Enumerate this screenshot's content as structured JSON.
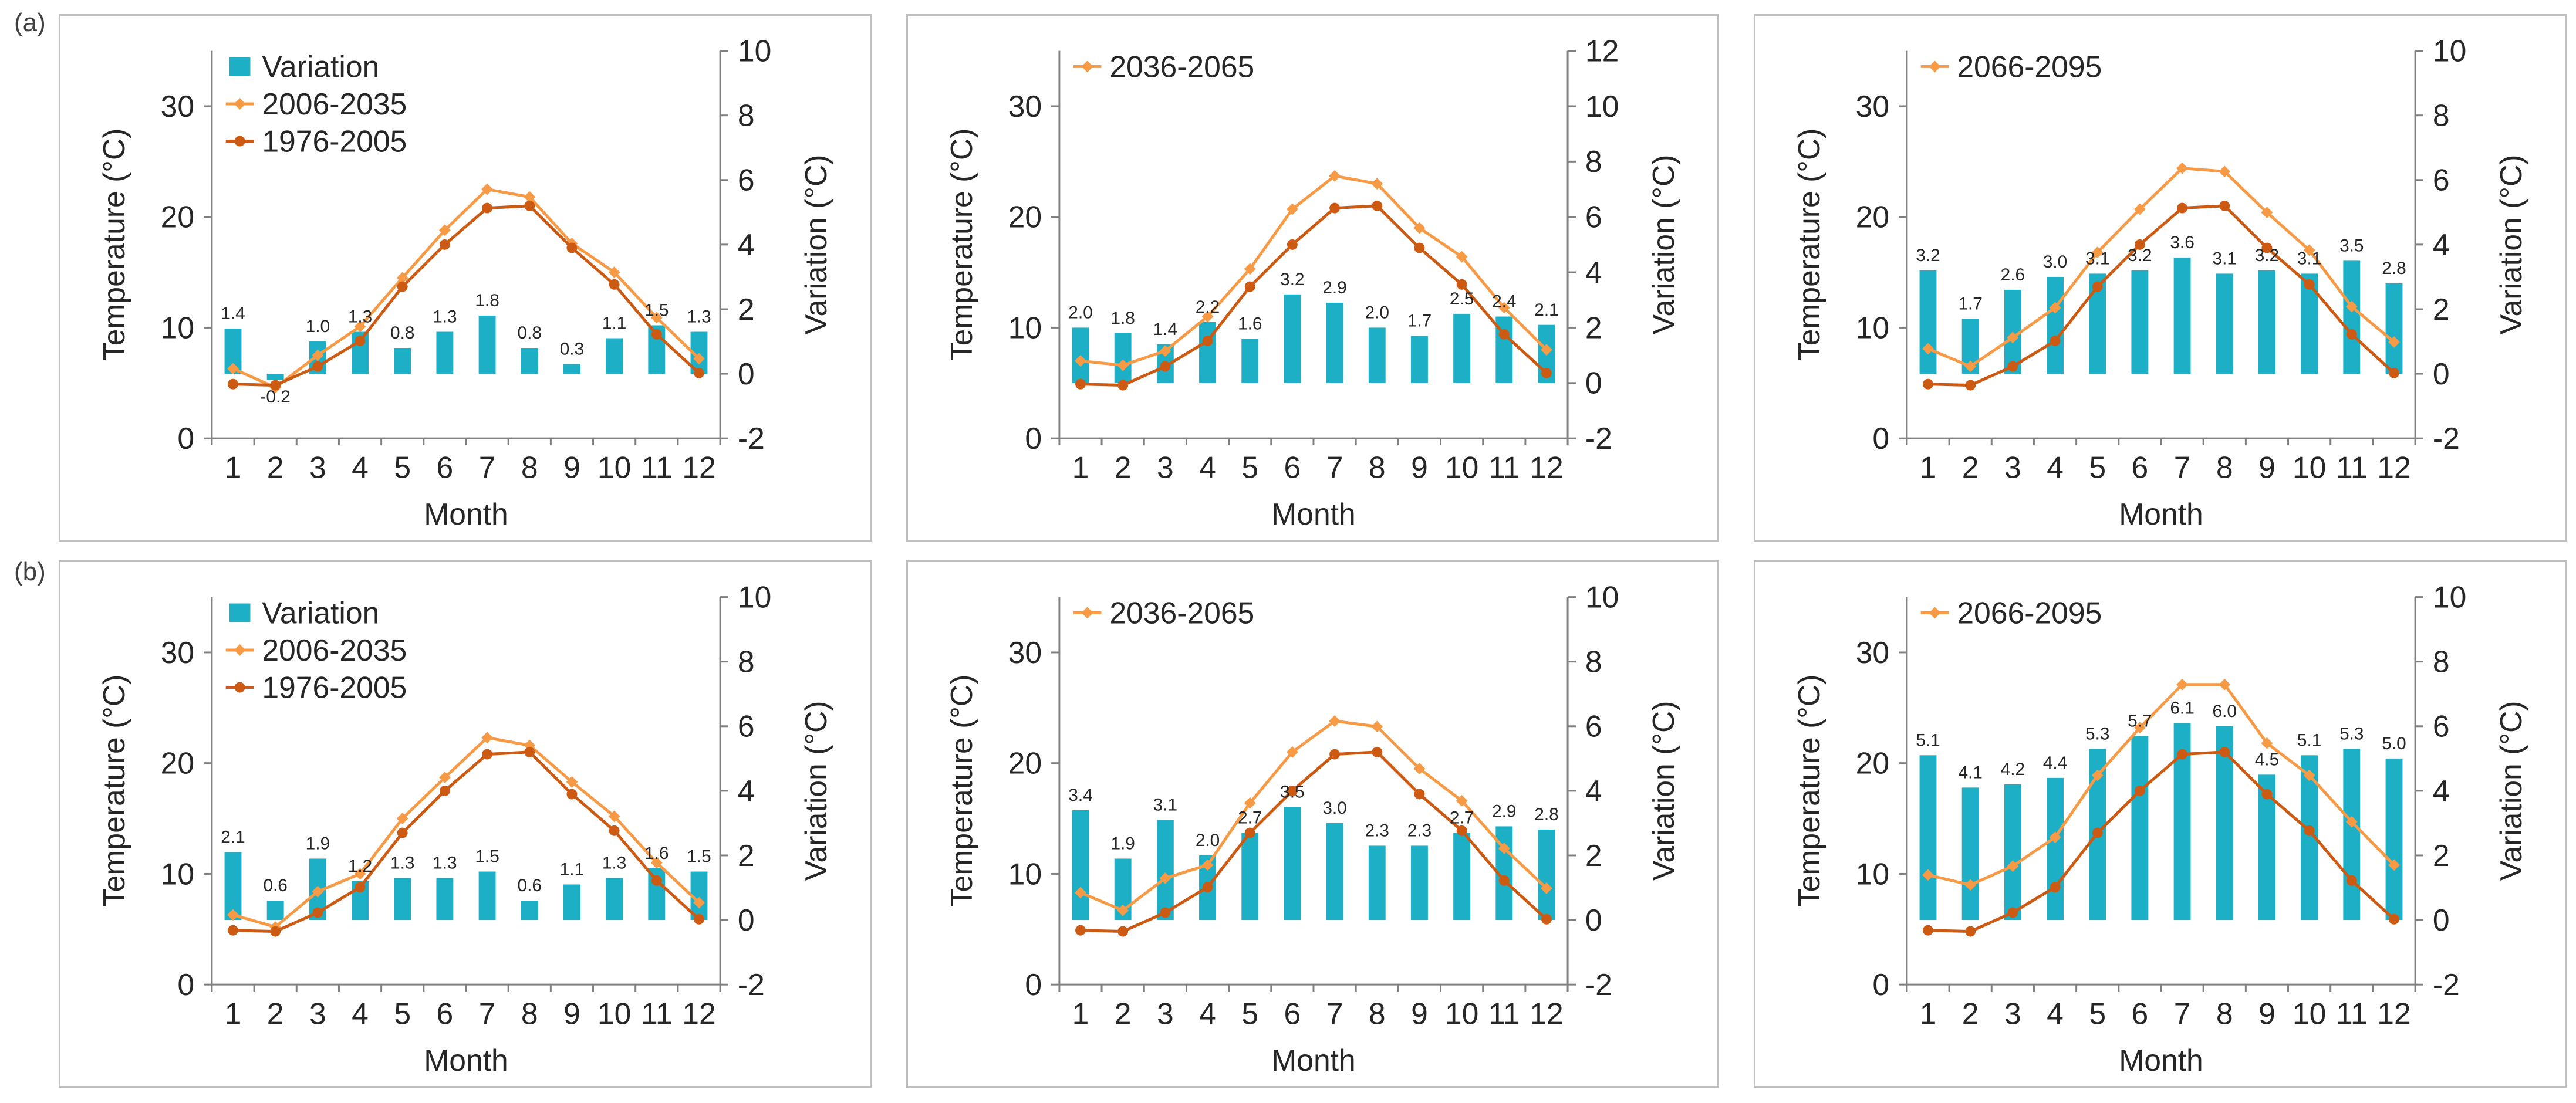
{
  "figure": {
    "row_labels": [
      "(a)",
      "(b)"
    ],
    "colors": {
      "variation": "#1cafc6",
      "future": "#f79a46",
      "baseline": "#cc5a12",
      "axis": "#808080",
      "text": "#262626"
    }
  },
  "chart_data": [
    {
      "id": "a1",
      "type": "bar+line",
      "xlabel": "Month",
      "ylabel_left": "Temperature (°C)",
      "ylabel_right": "Variation (°C)",
      "categories": [
        "1",
        "2",
        "3",
        "4",
        "5",
        "6",
        "7",
        "8",
        "9",
        "10",
        "11",
        "12"
      ],
      "ylim_left": [
        0,
        35
      ],
      "yticks_left": [
        "0",
        "10",
        "20",
        "30"
      ],
      "ylim_right": [
        -2,
        10
      ],
      "yticks_right": [
        "-2",
        "0",
        "2",
        "4",
        "6",
        "8",
        "10"
      ],
      "legend": [
        "Variation",
        "2006-2035",
        "1976-2005"
      ],
      "series": [
        {
          "name": "Variation",
          "kind": "bar",
          "axis": "right",
          "values": [
            1.4,
            -0.2,
            1.0,
            1.3,
            0.8,
            1.3,
            1.8,
            0.8,
            0.3,
            1.1,
            1.5,
            1.3
          ],
          "labels": [
            "1.4",
            "-0.2",
            "1.0",
            "1.3",
            "0.8",
            "1.3",
            "1.8",
            "0.8",
            "0.3",
            "1.1",
            "1.5",
            "1.3"
          ]
        },
        {
          "name": "2006-2035",
          "kind": "line",
          "axis": "left",
          "values": [
            6.3,
            4.6,
            7.5,
            10.1,
            14.5,
            18.8,
            22.5,
            21.8,
            17.6,
            15.0,
            10.9,
            7.2
          ]
        },
        {
          "name": "1976-2005",
          "kind": "line",
          "axis": "left",
          "values": [
            4.9,
            4.8,
            6.5,
            8.8,
            13.7,
            17.5,
            20.8,
            21.0,
            17.2,
            13.9,
            9.4,
            5.9
          ]
        }
      ]
    },
    {
      "id": "a2",
      "type": "bar+line",
      "xlabel": "Month",
      "ylabel_left": "Temperature (°C)",
      "ylabel_right": "Variation (°C)",
      "categories": [
        "1",
        "2",
        "3",
        "4",
        "5",
        "6",
        "7",
        "8",
        "9",
        "10",
        "11",
        "12"
      ],
      "ylim_left": [
        0,
        35
      ],
      "yticks_left": [
        "0",
        "10",
        "20",
        "30"
      ],
      "ylim_right": [
        -2,
        12
      ],
      "yticks_right": [
        "-2",
        "0",
        "2",
        "4",
        "6",
        "8",
        "10",
        "12"
      ],
      "legend": [
        "2036-2065"
      ],
      "series": [
        {
          "name": "Variation",
          "kind": "bar",
          "axis": "right",
          "values": [
            2.0,
            1.8,
            1.4,
            2.2,
            1.6,
            3.2,
            2.9,
            2.0,
            1.7,
            2.5,
            2.4,
            2.1
          ],
          "labels": [
            "2.0",
            "1.8",
            "1.4",
            "2.2",
            "1.6",
            "3.2",
            "2.9",
            "2.0",
            "1.7",
            "2.5",
            "2.4",
            "2.1"
          ]
        },
        {
          "name": "2036-2065",
          "kind": "line",
          "axis": "left",
          "values": [
            7.0,
            6.6,
            7.9,
            11.0,
            15.3,
            20.7,
            23.7,
            23.0,
            19.0,
            16.4,
            11.8,
            8.0
          ]
        },
        {
          "name": "1976-2005",
          "kind": "line",
          "axis": "left",
          "values": [
            4.9,
            4.8,
            6.5,
            8.8,
            13.7,
            17.5,
            20.8,
            21.0,
            17.2,
            13.9,
            9.4,
            5.9
          ]
        }
      ]
    },
    {
      "id": "a3",
      "type": "bar+line",
      "xlabel": "Month",
      "ylabel_left": "Temperature (°C)",
      "ylabel_right": "Variation (°C)",
      "categories": [
        "1",
        "2",
        "3",
        "4",
        "5",
        "6",
        "7",
        "8",
        "9",
        "10",
        "11",
        "12"
      ],
      "ylim_left": [
        0,
        35
      ],
      "yticks_left": [
        "0",
        "10",
        "20",
        "30"
      ],
      "ylim_right": [
        -2,
        10
      ],
      "yticks_right": [
        "-2",
        "0",
        "2",
        "4",
        "6",
        "8",
        "10"
      ],
      "legend": [
        "2066-2095"
      ],
      "series": [
        {
          "name": "Variation",
          "kind": "bar",
          "axis": "right",
          "values": [
            3.2,
            1.7,
            2.6,
            3.0,
            3.1,
            3.2,
            3.6,
            3.1,
            3.2,
            3.1,
            3.5,
            2.8
          ],
          "labels": [
            "3.2",
            "1.7",
            "2.6",
            "3.0",
            "3.1",
            "3.2",
            "3.6",
            "3.1",
            "3.2",
            "3.1",
            "3.5",
            "2.8"
          ]
        },
        {
          "name": "2066-2095",
          "kind": "line",
          "axis": "left",
          "values": [
            8.1,
            6.5,
            9.1,
            11.8,
            16.8,
            20.7,
            24.4,
            24.1,
            20.4,
            17.0,
            11.9,
            8.7
          ]
        },
        {
          "name": "1976-2005",
          "kind": "line",
          "axis": "left",
          "values": [
            4.9,
            4.8,
            6.5,
            8.8,
            13.7,
            17.5,
            20.8,
            21.0,
            17.2,
            13.9,
            9.4,
            5.9
          ]
        }
      ]
    },
    {
      "id": "b1",
      "type": "bar+line",
      "xlabel": "Month",
      "ylabel_left": "Temperature (°C)",
      "ylabel_right": "Variation (°C)",
      "categories": [
        "1",
        "2",
        "3",
        "4",
        "5",
        "6",
        "7",
        "8",
        "9",
        "10",
        "11",
        "12"
      ],
      "ylim_left": [
        0,
        35
      ],
      "yticks_left": [
        "0",
        "10",
        "20",
        "30"
      ],
      "ylim_right": [
        -2,
        10
      ],
      "yticks_right": [
        "-2",
        "0",
        "2",
        "4",
        "6",
        "8",
        "10"
      ],
      "legend": [
        "Variation",
        "2006-2035",
        "1976-2005"
      ],
      "series": [
        {
          "name": "Variation",
          "kind": "bar",
          "axis": "right",
          "values": [
            2.1,
            0.6,
            1.9,
            1.2,
            1.3,
            1.3,
            1.5,
            0.6,
            1.1,
            1.3,
            1.6,
            1.5
          ],
          "labels": [
            "2.1",
            "0.6",
            "1.9",
            "1.2",
            "1.3",
            "1.3",
            "1.5",
            "0.6",
            "1.1",
            "1.3",
            "1.6",
            "1.5"
          ]
        },
        {
          "name": "2006-2035",
          "kind": "line",
          "axis": "left",
          "values": [
            6.3,
            5.2,
            8.4,
            10.0,
            15.0,
            18.7,
            22.3,
            21.6,
            18.3,
            15.2,
            11.0,
            7.4
          ]
        },
        {
          "name": "1976-2005",
          "kind": "line",
          "axis": "left",
          "values": [
            4.9,
            4.8,
            6.5,
            8.8,
            13.7,
            17.5,
            20.8,
            21.0,
            17.2,
            13.9,
            9.4,
            5.9
          ]
        }
      ]
    },
    {
      "id": "b2",
      "type": "bar+line",
      "xlabel": "Month",
      "ylabel_left": "Temperature (°C)",
      "ylabel_right": "Variation (°C)",
      "categories": [
        "1",
        "2",
        "3",
        "4",
        "5",
        "6",
        "7",
        "8",
        "9",
        "10",
        "11",
        "12"
      ],
      "ylim_left": [
        0,
        35
      ],
      "yticks_left": [
        "0",
        "10",
        "20",
        "30"
      ],
      "ylim_right": [
        -2,
        10
      ],
      "yticks_right": [
        "-2",
        "0",
        "2",
        "4",
        "6",
        "8",
        "10"
      ],
      "legend": [
        "2036-2065"
      ],
      "series": [
        {
          "name": "Variation",
          "kind": "bar",
          "axis": "right",
          "values": [
            3.4,
            1.9,
            3.1,
            2.0,
            2.7,
            3.5,
            3.0,
            2.3,
            2.3,
            2.7,
            2.9,
            2.8
          ],
          "labels": [
            "3.4",
            "1.9",
            "3.1",
            "2.0",
            "2.7",
            "3.5",
            "3.0",
            "2.3",
            "2.3",
            "2.7",
            "2.9",
            "2.8"
          ]
        },
        {
          "name": "2036-2065",
          "kind": "line",
          "axis": "left",
          "values": [
            8.3,
            6.7,
            9.6,
            10.8,
            16.4,
            21.0,
            23.8,
            23.3,
            19.5,
            16.6,
            12.3,
            8.7
          ]
        },
        {
          "name": "1976-2005",
          "kind": "line",
          "axis": "left",
          "values": [
            4.9,
            4.8,
            6.5,
            8.8,
            13.7,
            17.5,
            20.8,
            21.0,
            17.2,
            13.9,
            9.4,
            5.9
          ]
        }
      ]
    },
    {
      "id": "b3",
      "type": "bar+line",
      "xlabel": "Month",
      "ylabel_left": "Temperature (°C)",
      "ylabel_right": "Variation (°C)",
      "categories": [
        "1",
        "2",
        "3",
        "4",
        "5",
        "6",
        "7",
        "8",
        "9",
        "10",
        "11",
        "12"
      ],
      "ylim_left": [
        0,
        35
      ],
      "yticks_left": [
        "0",
        "10",
        "20",
        "30"
      ],
      "ylim_right": [
        -2,
        10
      ],
      "yticks_right": [
        "-2",
        "0",
        "2",
        "4",
        "6",
        "8",
        "10"
      ],
      "legend": [
        "2066-2095"
      ],
      "series": [
        {
          "name": "Variation",
          "kind": "bar",
          "axis": "right",
          "values": [
            5.1,
            4.1,
            4.2,
            4.4,
            5.3,
            5.7,
            6.1,
            6.0,
            4.5,
            5.1,
            5.3,
            5.0
          ],
          "labels": [
            "5.1",
            "4.1",
            "4.2",
            "4.4",
            "5.3",
            "5.7",
            "6.1",
            "6.0",
            "4.5",
            "5.1",
            "5.3",
            "5.0"
          ]
        },
        {
          "name": "2066-2095",
          "kind": "line",
          "axis": "left",
          "values": [
            9.9,
            9.0,
            10.7,
            13.3,
            18.9,
            23.2,
            27.1,
            27.1,
            21.8,
            18.9,
            14.7,
            10.8
          ]
        },
        {
          "name": "1976-2005",
          "kind": "line",
          "axis": "left",
          "values": [
            4.9,
            4.8,
            6.5,
            8.8,
            13.7,
            17.5,
            20.8,
            21.0,
            17.2,
            13.9,
            9.4,
            5.9
          ]
        }
      ]
    }
  ]
}
